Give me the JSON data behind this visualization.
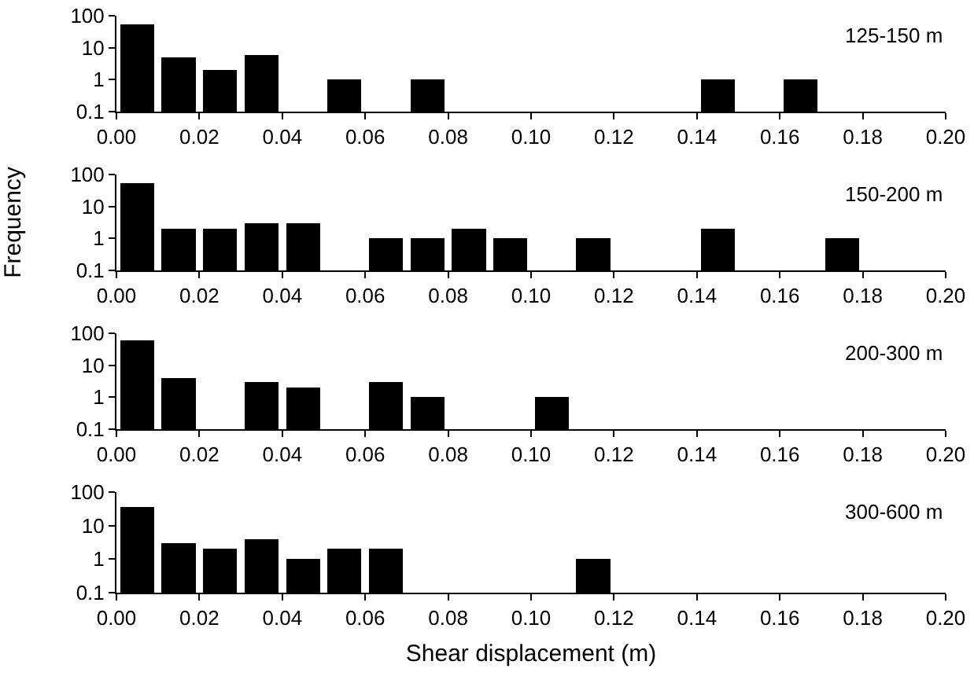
{
  "chart_data": [
    {
      "type": "histogram",
      "annotations": [
        "125-150 m"
      ],
      "bins": [
        0,
        0.01,
        0.02,
        0.03,
        0.04,
        0.05,
        0.06,
        0.07,
        0.08,
        0.09,
        0.1,
        0.11,
        0.12,
        0.13,
        0.14,
        0.15,
        0.16,
        0.17,
        0.18,
        0.19,
        0.2
      ],
      "values": [
        55,
        5,
        2,
        6,
        null,
        1,
        null,
        1,
        null,
        null,
        null,
        null,
        null,
        null,
        1,
        null,
        1,
        null,
        null,
        null
      ],
      "color": "#000000",
      "log": "y",
      "xlim": [
        0,
        0.2
      ],
      "xticks": [
        "0.00",
        0.02,
        0.04,
        0.06,
        0.08,
        "0.10",
        0.12,
        0.14,
        0.16,
        0.18,
        "0.20"
      ],
      "ylim": [
        0.1,
        100
      ],
      "yticks": [
        0.1,
        1,
        10,
        100
      ],
      "grid": false,
      "legend": false
    },
    {
      "type": "histogram",
      "ylabel": "Frequency",
      "annotations": [
        "150-200 m"
      ],
      "bins": [
        0,
        0.01,
        0.02,
        0.03,
        0.04,
        0.05,
        0.06,
        0.07,
        0.08,
        0.09,
        0.1,
        0.11,
        0.12,
        0.13,
        0.14,
        0.15,
        0.16,
        0.17,
        0.18,
        0.19,
        0.2
      ],
      "values": [
        55,
        2,
        2,
        3,
        3,
        null,
        1,
        1,
        2,
        1,
        null,
        1,
        null,
        null,
        2,
        null,
        null,
        1,
        null,
        null
      ],
      "color": "#000000",
      "log": "y",
      "xlim": [
        0,
        0.2
      ],
      "xticks": [
        "0.00",
        0.02,
        0.04,
        0.06,
        0.08,
        "0.10",
        0.12,
        0.14,
        0.16,
        0.18,
        "0.20"
      ],
      "ylim": [
        0.1,
        100
      ],
      "yticks": [
        0.1,
        1,
        10,
        100
      ],
      "grid": false,
      "legend": false
    },
    {
      "type": "histogram",
      "annotations": [
        "200-300 m"
      ],
      "bins": [
        0,
        0.01,
        0.02,
        0.03,
        0.04,
        0.05,
        0.06,
        0.07,
        0.08,
        0.09,
        0.1,
        0.11,
        0.12,
        0.13,
        0.14,
        0.15,
        0.16,
        0.17,
        0.18,
        0.19,
        0.2
      ],
      "values": [
        60,
        4,
        null,
        3,
        2,
        null,
        3,
        1,
        null,
        null,
        1,
        null,
        null,
        null,
        null,
        null,
        null,
        null,
        null,
        null
      ],
      "color": "#000000",
      "log": "y",
      "xlim": [
        0,
        0.2
      ],
      "xticks": [
        "0.00",
        0.02,
        0.04,
        0.06,
        0.08,
        "0.10",
        0.12,
        0.14,
        0.16,
        0.18,
        "0.20"
      ],
      "ylim": [
        0.1,
        100
      ],
      "yticks": [
        0.1,
        1,
        10,
        100
      ],
      "grid": false,
      "legend": false
    },
    {
      "type": "histogram",
      "xlabel": "Shear displacement (m)",
      "annotations": [
        "300-600 m"
      ],
      "bins": [
        0,
        0.01,
        0.02,
        0.03,
        0.04,
        0.05,
        0.06,
        0.07,
        0.08,
        0.09,
        0.1,
        0.11,
        0.12,
        0.13,
        0.14,
        0.15,
        0.16,
        0.17,
        0.18,
        0.19,
        0.2
      ],
      "values": [
        35,
        3,
        2,
        4,
        1,
        2,
        2,
        null,
        null,
        null,
        null,
        1,
        null,
        null,
        null,
        null,
        null,
        null,
        null,
        null
      ],
      "color": "#000000",
      "log": "y",
      "xlim": [
        0,
        0.2
      ],
      "xticks": [
        "0.00",
        0.02,
        0.04,
        0.06,
        0.08,
        "0.10",
        0.12,
        0.14,
        0.16,
        0.18,
        "0.20"
      ],
      "ylim": [
        0.1,
        100
      ],
      "yticks": [
        0.1,
        1,
        10,
        100
      ],
      "grid": false,
      "legend": false
    }
  ]
}
